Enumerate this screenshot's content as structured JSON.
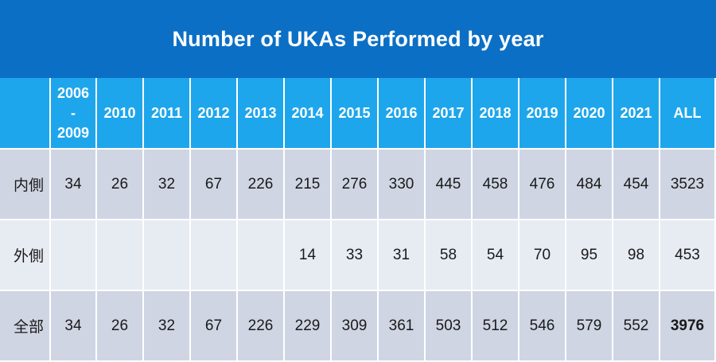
{
  "title": "Number of UKAs Performed by year",
  "header_columns": [
    "",
    "2006\n-\n2009",
    "2010",
    "2011",
    "2012",
    "2013",
    "2014",
    "2015",
    "2016",
    "2017",
    "2018",
    "2019",
    "2020",
    "2021",
    "ALL"
  ],
  "rows": [
    {
      "label": "内側",
      "values": [
        "34",
        "26",
        "32",
        "67",
        "226",
        "215",
        "276",
        "330",
        "445",
        "458",
        "476",
        "484",
        "454",
        "3523"
      ]
    },
    {
      "label": "外側",
      "values": [
        "",
        "",
        "",
        "",
        "",
        "14",
        "33",
        "31",
        "58",
        "54",
        "70",
        "95",
        "98",
        "453"
      ]
    },
    {
      "label": "全部",
      "values": [
        "34",
        "26",
        "32",
        "67",
        "226",
        "229",
        "309",
        "361",
        "503",
        "512",
        "546",
        "579",
        "552",
        "3976"
      ]
    }
  ],
  "colors": {
    "title_bg": "#0b6fc5",
    "header_bg": "#1ea6ec",
    "row_dark": "#cfd5e3",
    "row_light": "#e7ebf2"
  },
  "chart_data": {
    "type": "table",
    "title": "Number of UKAs Performed by year",
    "columns": [
      "2006-2009",
      "2010",
      "2011",
      "2012",
      "2013",
      "2014",
      "2015",
      "2016",
      "2017",
      "2018",
      "2019",
      "2020",
      "2021",
      "ALL"
    ],
    "series": [
      {
        "name": "内側",
        "values": [
          34,
          26,
          32,
          67,
          226,
          215,
          276,
          330,
          445,
          458,
          476,
          484,
          454,
          3523
        ]
      },
      {
        "name": "外側",
        "values": [
          null,
          null,
          null,
          null,
          null,
          14,
          33,
          31,
          58,
          54,
          70,
          95,
          98,
          453
        ]
      },
      {
        "name": "全部",
        "values": [
          34,
          26,
          32,
          67,
          226,
          229,
          309,
          361,
          503,
          512,
          546,
          579,
          552,
          3976
        ]
      }
    ]
  }
}
